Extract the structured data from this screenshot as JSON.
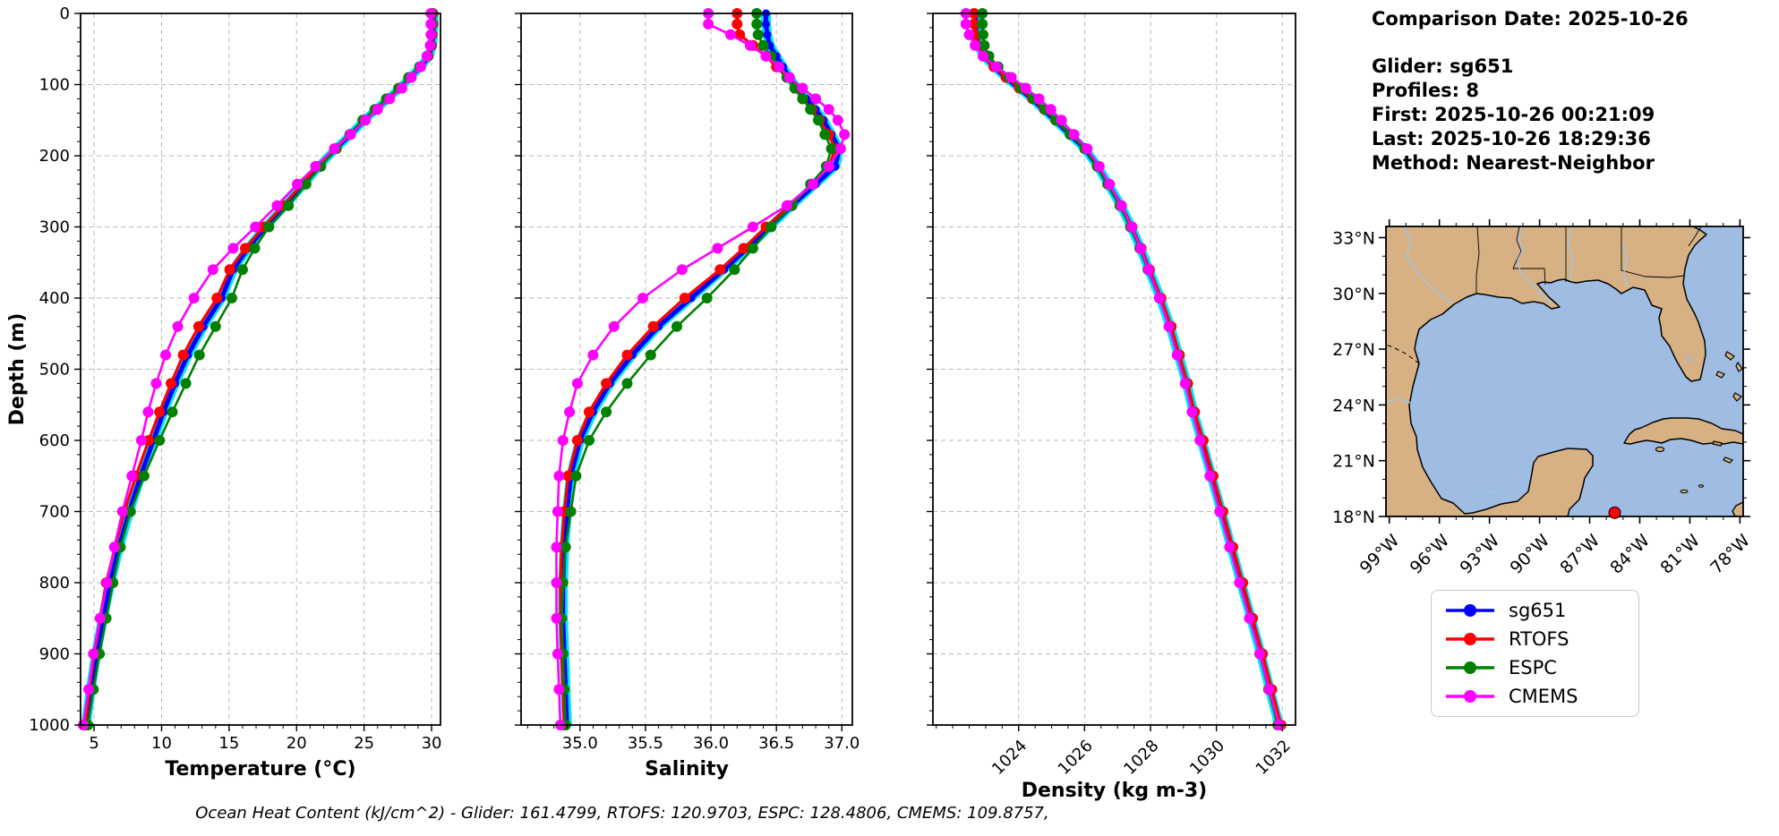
{
  "header": {
    "comparison_date": "Comparison Date: 2025-10-26",
    "lines": [
      "Glider: sg651",
      "Profiles: 8",
      "First: 2025-10-26 00:21:09",
      "Last: 2025-10-26 18:29:36",
      "Method: Nearest-Neighbor"
    ]
  },
  "legend": {
    "entries": [
      {
        "label": "sg651",
        "color": "#0000ff"
      },
      {
        "label": "RTOFS",
        "color": "#ff0000"
      },
      {
        "label": "ESPC",
        "color": "#008000"
      },
      {
        "label": "CMEMS",
        "color": "#ff00ff"
      }
    ]
  },
  "footer": {
    "text": "Ocean Heat Content (kJ/cm^2) - Glider: 161.4799,  RTOFS: 120.9703,  ESPC: 128.4806,  CMEMS: 109.8757,",
    "ocean_heat_content_kJ_cm2": {
      "Glider": 161.4799,
      "RTOFS": 120.9703,
      "ESPC": 128.4806,
      "CMEMS": 109.8757
    }
  },
  "map": {
    "region": "Gulf of Mexico",
    "land_color": "#d7b184",
    "ocean_color": "#9fbce2",
    "lake_color": "#b5b5b5",
    "river_color": "#9ec7e8",
    "lat_ticks": [
      {
        "label": "33°N",
        "lat": 33
      },
      {
        "label": "30°N",
        "lat": 30
      },
      {
        "label": "27°N",
        "lat": 27
      },
      {
        "label": "24°N",
        "lat": 24
      },
      {
        "label": "21°N",
        "lat": 21
      },
      {
        "label": "18°N",
        "lat": 18
      }
    ],
    "lon_ticks": [
      {
        "label": "99°W",
        "lon": -99
      },
      {
        "label": "96°W",
        "lon": -96
      },
      {
        "label": "93°W",
        "lon": -93
      },
      {
        "label": "90°W",
        "lon": -90
      },
      {
        "label": "87°W",
        "lon": -87
      },
      {
        "label": "84°W",
        "lon": -84
      },
      {
        "label": "81°W",
        "lon": -81
      },
      {
        "label": "78°W",
        "lon": -78
      }
    ],
    "glider_marker": {
      "color": "#ff0000",
      "lat": 18.2,
      "lon": -85.5
    }
  },
  "chart_data": [
    {
      "type": "line",
      "xlabel": "Temperature (°C)",
      "ylabel": "Depth (m)",
      "xlim": [
        4.0,
        30.66
      ],
      "ylim": [
        0,
        1000
      ],
      "xticks": [
        5,
        10,
        15,
        20,
        25,
        30
      ],
      "yticks": [
        0,
        100,
        200,
        300,
        400,
        500,
        600,
        700,
        800,
        900,
        1000
      ],
      "minor_x_step": 1,
      "minor_y_step": 20,
      "rotate_xticklabels": false,
      "show_ytick_labels": true,
      "grid": true,
      "depths": [
        0,
        15,
        30,
        45,
        60,
        75,
        90,
        105,
        120,
        135,
        150,
        170,
        190,
        215,
        240,
        270,
        300,
        330,
        360,
        400,
        440,
        480,
        520,
        560,
        600,
        650,
        700,
        750,
        800,
        850,
        900,
        950,
        1000
      ],
      "series": [
        {
          "name": "sg651",
          "color": "#0000ff",
          "envelope_color": "#00e5ff",
          "line_width": 5,
          "marker_size": 4.5,
          "values": [
            30.15,
            30.15,
            30.1,
            30.05,
            29.8,
            29.2,
            28.4,
            27.65,
            26.75,
            25.9,
            25.0,
            24.0,
            22.9,
            21.65,
            20.55,
            19.15,
            17.7,
            16.4,
            15.3,
            14.45,
            13.1,
            11.95,
            11.0,
            10.15,
            9.4,
            8.45,
            7.6,
            6.85,
            6.2,
            5.65,
            5.15,
            4.75,
            4.4
          ]
        },
        {
          "name": "RTOFS",
          "color": "#ff0000",
          "line_width": 3.2,
          "marker_size": 6,
          "values": [
            30.1,
            30.1,
            30.05,
            30.0,
            29.75,
            29.15,
            28.35,
            27.6,
            26.7,
            25.85,
            24.95,
            23.95,
            22.8,
            21.5,
            20.4,
            19.0,
            17.55,
            16.2,
            15.05,
            14.1,
            12.75,
            11.6,
            10.7,
            9.85,
            9.05,
            8.1,
            7.25,
            6.55,
            5.9,
            5.45,
            5.0,
            4.65,
            4.35
          ]
        },
        {
          "name": "ESPC",
          "color": "#008000",
          "line_width": 2.6,
          "marker_size": 6,
          "values": [
            30.05,
            30.05,
            30.0,
            29.95,
            29.7,
            29.1,
            28.3,
            27.55,
            26.65,
            25.8,
            24.9,
            23.95,
            22.95,
            21.8,
            20.7,
            19.4,
            17.95,
            16.9,
            16.0,
            15.2,
            14.0,
            12.8,
            11.8,
            10.8,
            9.85,
            8.7,
            7.7,
            6.95,
            6.4,
            5.9,
            5.4,
            4.95,
            4.55
          ]
        },
        {
          "name": "CMEMS",
          "color": "#ff00ff",
          "line_width": 2.6,
          "marker_size": 6,
          "values": [
            29.95,
            29.95,
            29.95,
            29.9,
            29.65,
            29.2,
            28.5,
            27.8,
            26.9,
            26.0,
            25.1,
            24.0,
            22.8,
            21.4,
            20.05,
            18.55,
            16.95,
            15.3,
            13.8,
            12.4,
            11.2,
            10.3,
            9.6,
            9.0,
            8.5,
            7.8,
            7.1,
            6.5,
            5.95,
            5.45,
            4.95,
            4.6,
            4.2
          ]
        }
      ]
    },
    {
      "type": "line",
      "xlabel": "Salinity",
      "ylabel": "",
      "xlim": [
        34.55,
        37.08
      ],
      "ylim": [
        0,
        1000
      ],
      "xticks": [
        35.0,
        35.5,
        36.0,
        36.5,
        37.0
      ],
      "yticks": [
        0,
        100,
        200,
        300,
        400,
        500,
        600,
        700,
        800,
        900,
        1000
      ],
      "minor_x_step": 0.1,
      "minor_y_step": 20,
      "rotate_xticklabels": false,
      "show_ytick_labels": false,
      "grid": true,
      "depths": [
        0,
        15,
        30,
        45,
        60,
        75,
        90,
        105,
        120,
        135,
        150,
        170,
        190,
        215,
        240,
        270,
        300,
        330,
        360,
        400,
        440,
        480,
        520,
        560,
        600,
        650,
        700,
        750,
        800,
        850,
        900,
        950,
        1000
      ],
      "series": [
        {
          "name": "sg651",
          "color": "#0000ff",
          "envelope_color": "#00e5ff",
          "line_width": 5,
          "marker_size": 4.5,
          "values": [
            36.42,
            36.42,
            36.43,
            36.45,
            36.5,
            36.55,
            36.6,
            36.66,
            36.73,
            36.8,
            36.86,
            36.92,
            36.98,
            36.95,
            36.8,
            36.62,
            36.45,
            36.28,
            36.1,
            35.85,
            35.6,
            35.4,
            35.23,
            35.1,
            35.0,
            34.93,
            34.9,
            34.88,
            34.87,
            34.87,
            34.88,
            34.89,
            34.9
          ]
        },
        {
          "name": "RTOFS",
          "color": "#ff0000",
          "line_width": 3.2,
          "marker_size": 6,
          "values": [
            36.2,
            36.2,
            36.22,
            36.32,
            36.42,
            36.5,
            36.58,
            36.64,
            36.7,
            36.77,
            36.83,
            36.9,
            36.95,
            36.9,
            36.77,
            36.6,
            36.42,
            36.25,
            36.07,
            35.8,
            35.56,
            35.36,
            35.2,
            35.07,
            34.98,
            34.91,
            34.88,
            34.86,
            34.85,
            34.85,
            34.86,
            34.87,
            34.88
          ]
        },
        {
          "name": "ESPC",
          "color": "#008000",
          "line_width": 2.6,
          "marker_size": 6,
          "values": [
            36.35,
            36.35,
            36.36,
            36.4,
            36.46,
            36.52,
            36.58,
            36.64,
            36.7,
            36.76,
            36.82,
            36.87,
            36.92,
            36.88,
            36.76,
            36.62,
            36.46,
            36.32,
            36.18,
            35.97,
            35.74,
            35.54,
            35.36,
            35.2,
            35.07,
            34.97,
            34.93,
            34.89,
            34.87,
            34.86,
            34.87,
            34.88,
            34.89
          ]
        },
        {
          "name": "CMEMS",
          "color": "#ff00ff",
          "line_width": 2.6,
          "marker_size": 6,
          "values": [
            35.98,
            35.98,
            36.15,
            36.3,
            36.42,
            36.52,
            36.6,
            36.7,
            36.8,
            36.9,
            36.97,
            37.02,
            36.99,
            36.9,
            36.78,
            36.58,
            36.32,
            36.05,
            35.78,
            35.48,
            35.26,
            35.1,
            34.98,
            34.92,
            34.87,
            34.84,
            34.83,
            34.82,
            34.82,
            34.82,
            34.83,
            34.84,
            34.85
          ]
        }
      ]
    },
    {
      "type": "line",
      "xlabel": "Density (kg m-3)",
      "ylabel": "",
      "xlim": [
        1021.4,
        1032.4
      ],
      "ylim": [
        0,
        1000
      ],
      "xticks": [
        1024,
        1026,
        1028,
        1030,
        1032
      ],
      "yticks": [
        0,
        100,
        200,
        300,
        400,
        500,
        600,
        700,
        800,
        900,
        1000
      ],
      "minor_x_step": 0.5,
      "minor_y_step": 20,
      "rotate_xticklabels": true,
      "show_ytick_labels": false,
      "grid": true,
      "depths": [
        0,
        15,
        30,
        45,
        60,
        75,
        90,
        105,
        120,
        135,
        150,
        170,
        190,
        215,
        240,
        270,
        300,
        330,
        360,
        400,
        440,
        480,
        520,
        560,
        600,
        650,
        700,
        750,
        800,
        850,
        900,
        950,
        1000
      ],
      "series": [
        {
          "name": "sg651",
          "color": "#0000ff",
          "envelope_color": "#00e5ff",
          "line_width": 5,
          "marker_size": 4.5,
          "values": [
            1022.7,
            1022.7,
            1022.72,
            1022.78,
            1022.95,
            1023.25,
            1023.6,
            1024.0,
            1024.4,
            1024.75,
            1025.1,
            1025.55,
            1026.0,
            1026.4,
            1026.72,
            1027.1,
            1027.42,
            1027.7,
            1027.95,
            1028.3,
            1028.6,
            1028.85,
            1029.1,
            1029.3,
            1029.55,
            1029.85,
            1030.15,
            1030.45,
            1030.75,
            1031.05,
            1031.35,
            1031.62,
            1031.9
          ]
        },
        {
          "name": "RTOFS",
          "color": "#ff0000",
          "line_width": 3.2,
          "marker_size": 6,
          "values": [
            1022.65,
            1022.65,
            1022.68,
            1022.75,
            1022.93,
            1023.25,
            1023.62,
            1024.02,
            1024.42,
            1024.78,
            1025.12,
            1025.57,
            1026.02,
            1026.42,
            1026.74,
            1027.12,
            1027.44,
            1027.72,
            1027.97,
            1028.32,
            1028.63,
            1028.88,
            1029.13,
            1029.34,
            1029.6,
            1029.9,
            1030.2,
            1030.5,
            1030.8,
            1031.1,
            1031.4,
            1031.68,
            1031.96
          ]
        },
        {
          "name": "ESPC",
          "color": "#008000",
          "line_width": 2.6,
          "marker_size": 6,
          "values": [
            1022.9,
            1022.9,
            1022.92,
            1022.96,
            1023.1,
            1023.38,
            1023.7,
            1024.08,
            1024.45,
            1024.8,
            1025.13,
            1025.56,
            1026.0,
            1026.38,
            1026.7,
            1027.07,
            1027.39,
            1027.67,
            1027.92,
            1028.27,
            1028.57,
            1028.82,
            1029.07,
            1029.27,
            1029.51,
            1029.81,
            1030.11,
            1030.41,
            1030.71,
            1031.01,
            1031.31,
            1031.58,
            1031.86
          ]
        },
        {
          "name": "CMEMS",
          "color": "#ff00ff",
          "line_width": 2.6,
          "marker_size": 6,
          "values": [
            1022.4,
            1022.4,
            1022.5,
            1022.68,
            1022.92,
            1023.32,
            1023.78,
            1024.22,
            1024.62,
            1024.98,
            1025.3,
            1025.68,
            1026.08,
            1026.45,
            1026.76,
            1027.12,
            1027.43,
            1027.7,
            1027.94,
            1028.27,
            1028.56,
            1028.81,
            1029.05,
            1029.26,
            1029.5,
            1029.8,
            1030.1,
            1030.4,
            1030.7,
            1031.0,
            1031.32,
            1031.6,
            1031.9
          ]
        }
      ]
    }
  ]
}
